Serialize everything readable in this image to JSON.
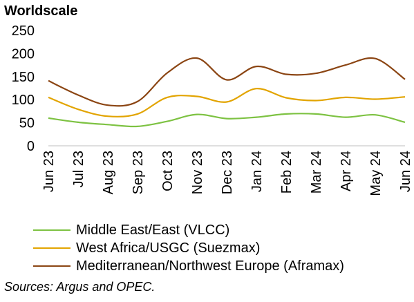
{
  "chart_data": {
    "type": "line",
    "ylabel": "Worldscale",
    "categories": [
      "Jun 23",
      "Jul 23",
      "Aug 23",
      "Sep 23",
      "Oct 23",
      "Nov 23",
      "Dec 23",
      "Jan 24",
      "Feb 24",
      "Mar 24",
      "Apr 24",
      "May 24",
      "Jun 24"
    ],
    "yticks": [
      0,
      50,
      100,
      150,
      200,
      250
    ],
    "ylim": [
      0,
      250
    ],
    "series": [
      {
        "name": "Middle East/East (VLCC)",
        "color": "#7dc242",
        "values": [
          60,
          51,
          46,
          42,
          53,
          68,
          59,
          62,
          69,
          69,
          62,
          67,
          51
        ]
      },
      {
        "name": "West Africa/USGC (Suezmax)",
        "color": "#e2a400",
        "values": [
          105,
          79,
          64,
          69,
          105,
          107,
          95,
          124,
          104,
          98,
          105,
          101,
          106
        ]
      },
      {
        "name": "Mediterranean/Northwest Europe (Aframax)",
        "color": "#8b4513",
        "values": [
          141,
          110,
          88,
          96,
          158,
          190,
          143,
          172,
          155,
          157,
          175,
          189,
          144
        ]
      }
    ],
    "legend_position": "bottom",
    "grid": false
  },
  "source": "Sources: Argus and OPEC."
}
